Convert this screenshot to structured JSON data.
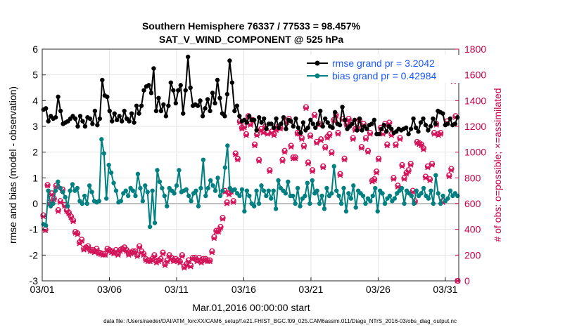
{
  "chart_data": {
    "type": "line",
    "title": "Southern Hemisphere 76337 / 77533 = 98.457%",
    "subtitle": "SAT_V_WIND_COMPONENT @ 525 hPa",
    "xlabel": "Mar.01,2016 00:00:00 start",
    "ylabel": "rmse and bias (model - observation)",
    "ylabel_right": "# of obs: o=possible; ×=assimilated",
    "footnote": "data file: /Users/raeder/DAI/ATM_forcXX/CAM6_setup/f.e21.FHIST_BGC.f09_025.CAM6assim.011/Diags_NTrS_2016-03/obs_diag_output.nc",
    "x_ticks": [
      "03/01",
      "03/06",
      "03/11",
      "03/16",
      "03/21",
      "03/26",
      "03/31"
    ],
    "x_tick_days": [
      1,
      6,
      11,
      16,
      21,
      26,
      31
    ],
    "xlim": [
      1,
      32
    ],
    "ylim": [
      -3,
      6
    ],
    "y_ticks": [
      "-3",
      "-2",
      "-1",
      "0",
      "1",
      "2",
      "3",
      "4",
      "5",
      "6"
    ],
    "ylim_right": [
      0,
      1800
    ],
    "y_ticks_right": [
      "0",
      "200",
      "400",
      "600",
      "800",
      "1000",
      "1200",
      "1400",
      "1600",
      "1800"
    ],
    "grid": true,
    "legend": "top-right",
    "series": [
      {
        "name": "rmse grand pr = 3.2042",
        "color": "#000000",
        "axis": "left",
        "marker": "circle",
        "values": [
          3.65,
          3.7,
          3.2,
          3.4,
          3.3,
          3.35,
          4.15,
          3.6,
          3.1,
          3.15,
          3.2,
          3.3,
          3.4,
          3.3,
          3.0,
          3.4,
          3.2,
          3.0,
          3.35,
          3.3,
          3.1,
          3.6,
          3.05,
          3.3,
          4.8,
          4.2,
          4.15,
          3.6,
          3.2,
          3.5,
          3.25,
          3.4,
          3.2,
          3.6,
          3.3,
          3.2,
          3.5,
          3.15,
          3.8,
          3.5,
          3.8,
          4.4,
          4.55,
          4.6,
          4.3,
          5.25,
          3.6,
          4.1,
          3.6,
          3.85,
          3.4,
          3.8,
          4.7,
          4.4,
          3.9,
          4.4,
          4.6,
          3.5,
          4.4,
          5.7,
          4.5,
          3.8,
          3.85,
          3.8,
          4.0,
          3.4,
          3.7,
          4.05,
          3.6,
          4.3,
          3.9,
          4.8,
          4.1,
          3.5,
          3.4,
          4.25,
          5.55,
          4.7,
          3.6,
          3.8,
          3.4,
          3.2,
          3.25,
          3.15,
          3.4,
          3.25,
          3.25,
          2.85,
          3.35,
          3.15,
          3.3,
          2.9,
          3.1,
          3.1,
          2.95,
          3.3,
          2.95,
          3.1,
          3.35,
          2.9,
          3.25,
          3.2,
          3.0,
          3.3,
          2.95,
          2.75,
          3.15,
          2.85,
          2.95,
          3.25,
          3.1,
          2.95,
          3.1,
          3.6,
          3.0,
          3.3,
          3.15,
          3.0,
          2.95,
          3.55,
          3.1,
          3.05,
          3.75,
          3.25,
          2.9,
          3.0,
          3.1,
          3.25,
          2.85,
          3.3,
          2.85,
          3.0,
          2.9,
          3.05,
          3.1,
          3.25,
          2.7,
          2.7,
          2.9,
          3.05,
          2.8,
          3.0,
          2.9,
          2.75,
          2.8,
          2.9,
          2.85,
          2.9,
          2.95,
          2.7,
          2.9,
          3.3,
          2.95,
          2.8,
          3.15,
          3.3,
          3.05,
          2.85,
          3.0,
          3.3,
          3.1,
          3.6,
          3.55,
          3.5,
          3.05,
          3.1,
          3.3,
          3.05,
          3.1,
          3.35
        ]
      },
      {
        "name": "bias grand pr = 0.42984",
        "color": "#008080",
        "axis": "left",
        "marker": "circle",
        "values": [
          -0.8,
          -0.85,
          0.5,
          -0.1,
          0.0,
          0.5,
          0.85,
          0.6,
          0.45,
          0.25,
          -0.1,
          0.5,
          0.75,
          0.5,
          0.6,
          0.1,
          0.0,
          0.3,
          0.0,
          0.7,
          0.45,
          0.1,
          0.05,
          0.1,
          2.5,
          1.95,
          0.2,
          1.5,
          1.2,
          0.8,
          0.5,
          0.05,
          0.1,
          0.4,
          0.5,
          0.3,
          0.6,
          0.5,
          0.3,
          1.15,
          0.6,
          0.1,
          0.7,
          0.45,
          -0.9,
          0.5,
          -0.75,
          1.3,
          0.85,
          0.6,
          0.3,
          -0.1,
          0.6,
          0.5,
          0.4,
          0.7,
          1.3,
          0.45,
          0.5,
          0.55,
          0.3,
          0.1,
          0.4,
          0.5,
          -0.1,
          0.6,
          1.7,
          0.3,
          0.6,
          0.9,
          0.7,
          0.5,
          1.0,
          0.3,
          0.5,
          1.4,
          2.25,
          0.6,
          0.5,
          0.55,
          0.4,
          0.3,
          0.55,
          -0.3,
          0.5,
          0.3,
          0.0,
          -0.1,
          0.5,
          0.0,
          0.7,
          0.5,
          0.3,
          0.5,
          0.2,
          0.5,
          -0.2,
          0.9,
          0.6,
          0.5,
          0.4,
          0.85,
          0.3,
          0.3,
          0.0,
          0.6,
          -0.1,
          0.2,
          0.3,
          0.8,
          0.0,
          0.9,
          0.4,
          0.5,
          0.0,
          0.3,
          -0.2,
          0.6,
          0.3,
          0.4,
          1.45,
          0.5,
          0.3,
          0.0,
          0.6,
          -0.3,
          0.4,
          0.2,
          0.7,
          -0.15,
          0.5,
          0.4,
          0.3,
          0.0,
          0.2,
          0.1,
          0.3,
          0.6,
          -0.3,
          0.5,
          0.4,
          0.0,
          0.2,
          0.3,
          0.1,
          0.2,
          0.4,
          0.5,
          0.6,
          0.0,
          0.5,
          0.4,
          0.3,
          0.0,
          0.5,
          0.3,
          0.4,
          0.6,
          0.3,
          0.2,
          0.5,
          0.0,
          1.1,
          0.4,
          0.0,
          0.3,
          0.1,
          0.2,
          0.5,
          0.3,
          0.4,
          0.3
        ]
      },
      {
        "name": "possible",
        "color": "#d4145a",
        "axis": "right",
        "marker": "o",
        "values": [
          510,
          400,
          745,
          610,
          680,
          640,
          740,
          550,
          620,
          710,
          590,
          550,
          530,
          500,
          470,
          380,
          370,
          300,
          320,
          250,
          260,
          270,
          240,
          240,
          230,
          250,
          220,
          215,
          210,
          210,
          250,
          240,
          230,
          220,
          240,
          210,
          240,
          250,
          260,
          240,
          210,
          220,
          230,
          230,
          200,
          270,
          230,
          210,
          170,
          160,
          160,
          170,
          200,
          150,
          160,
          170,
          220,
          130,
          160,
          200,
          180,
          160,
          170,
          160,
          150,
          200,
          110,
          130,
          160,
          120,
          180,
          180,
          160,
          180,
          150,
          170,
          170,
          160,
          160,
          230,
          340,
          390,
          390,
          420,
          490,
          700,
          610,
          680,
          700,
          620,
          990,
          950,
          1240,
          1190,
          1200,
          1140,
          1280,
          1220,
          1250,
          1060,
          1140,
          940,
          1180,
          1160,
          1200,
          1150,
          860,
          1160,
          1140,
          1180,
          1200,
          1190,
          940,
          1010,
          1240,
          1260,
          1050,
          960,
          960,
          1150,
          1150,
          1110,
          1050,
          1350,
          920,
          1130,
          860,
          1290,
          1080,
          1220,
          1100,
          890,
          1040,
          1120,
          1140,
          1000,
          1250,
          1290,
          1150,
          830,
          1260,
          950,
          1220,
          1260,
          1230,
          1110,
          1180,
          1190,
          1250,
          1040,
          1220,
          1110,
          1010,
          1150,
          780,
          790,
          850,
          950,
          1190,
          1150,
          1220,
          1060,
          1230,
          1140,
          800,
          1060,
          740,
          1110,
          900,
          800,
          840,
          860,
          910,
          700,
          620,
          1080,
          1070,
          1060,
          1030,
          810,
          890,
          790,
          910,
          1150,
          1220,
          1140,
          1150,
          620,
          1580,
          1240,
          820,
          870,
          1560,
          1280,
          0
        ]
      },
      {
        "name": "assimilated",
        "color": "#d4145a",
        "axis": "right",
        "marker": "x",
        "values": [
          500,
          390,
          740,
          600,
          670,
          630,
          730,
          540,
          610,
          700,
          580,
          540,
          520,
          490,
          460,
          370,
          360,
          290,
          310,
          240,
          250,
          260,
          230,
          230,
          220,
          240,
          210,
          205,
          200,
          200,
          240,
          230,
          220,
          210,
          230,
          200,
          230,
          240,
          250,
          230,
          200,
          210,
          220,
          220,
          190,
          260,
          220,
          200,
          160,
          150,
          150,
          160,
          190,
          140,
          150,
          160,
          210,
          120,
          150,
          190,
          170,
          150,
          160,
          150,
          140,
          190,
          100,
          120,
          150,
          110,
          170,
          170,
          150,
          170,
          140,
          160,
          160,
          150,
          150,
          220,
          330,
          380,
          380,
          410,
          480,
          690,
          600,
          670,
          690,
          610,
          980,
          940,
          1230,
          1180,
          1190,
          1130,
          1270,
          1210,
          1240,
          1050,
          1130,
          930,
          1170,
          1150,
          1190,
          1140,
          850,
          1150,
          1130,
          1170,
          1190,
          1180,
          930,
          1000,
          1230,
          1250,
          1040,
          950,
          950,
          1140,
          1140,
          1100,
          1040,
          1340,
          910,
          1120,
          850,
          1280,
          1070,
          1210,
          1090,
          880,
          1030,
          1110,
          1130,
          990,
          1240,
          1280,
          1140,
          820,
          1250,
          940,
          1210,
          1250,
          1220,
          1100,
          1170,
          1180,
          1240,
          1030,
          1210,
          1100,
          1000,
          1140,
          770,
          780,
          840,
          940,
          1180,
          1140,
          1210,
          1050,
          1220,
          1130,
          790,
          1050,
          730,
          1100,
          890,
          790,
          830,
          850,
          900,
          690,
          610,
          1070,
          1060,
          1050,
          1020,
          800,
          880,
          780,
          900,
          1140,
          1210,
          1130,
          1140,
          610,
          1570,
          1230,
          810,
          860,
          1550,
          1270,
          0
        ]
      }
    ]
  },
  "legend": {
    "rmse_label": "rmse grand pr = 3.2042",
    "bias_label": "bias grand pr = 0.42984"
  }
}
